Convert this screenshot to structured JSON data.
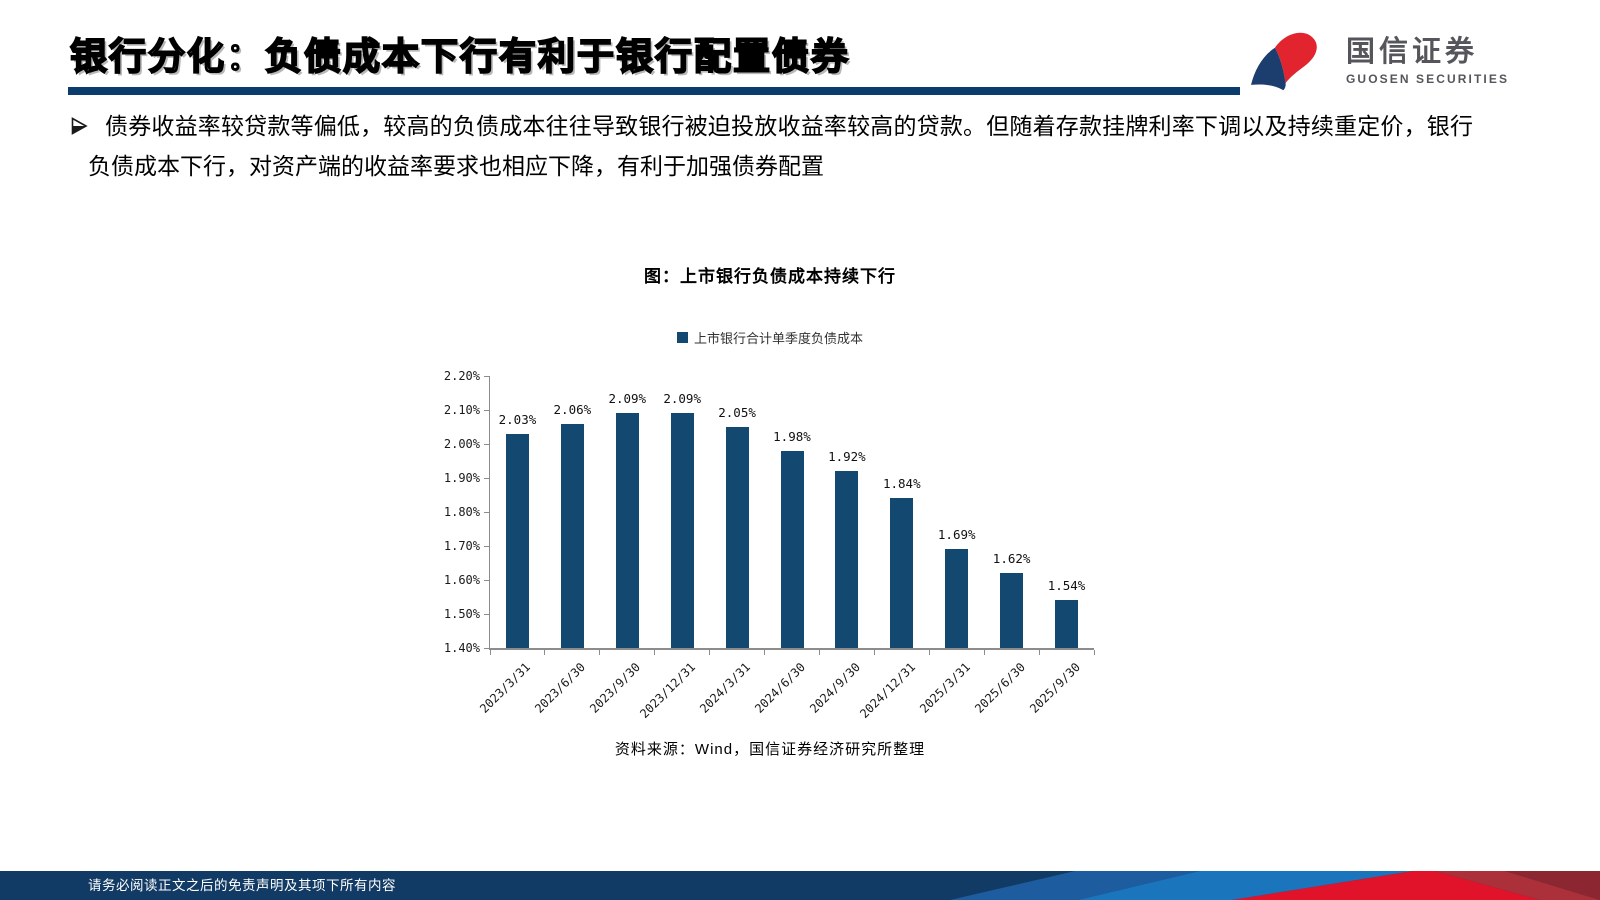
{
  "header": {
    "title": "银行分化：负债成本下行有利于银行配置债券",
    "logo_cn": "国信证券",
    "logo_en": "GUOSEN SECURITIES"
  },
  "body": {
    "bullet": "债券收益率较贷款等偏低，较高的负债成本往往导致银行被迫投放收益率较高的贷款。但随着存款挂牌利率下调以及持续重定价，银行负债成本下行，对资产端的收益率要求也相应下降，有利于加强债券配置"
  },
  "chart_data": {
    "type": "bar",
    "title": "图：上市银行负债成本持续下行",
    "legend_label": "上市银行合计单季度负债成本",
    "legend_position": "top",
    "source": "资料来源：Wind，国信证券经济研究所整理",
    "categories": [
      "2023/3/31",
      "2023/6/30",
      "2023/9/30",
      "2023/12/31",
      "2024/3/31",
      "2024/6/30",
      "2024/9/30",
      "2024/12/31",
      "2025/3/31",
      "2025/6/30",
      "2025/9/30"
    ],
    "values": [
      2.03,
      2.06,
      2.09,
      2.09,
      2.05,
      1.98,
      1.92,
      1.84,
      1.69,
      1.62,
      1.54
    ],
    "data_labels": [
      "2.03%",
      "2.06%",
      "2.09%",
      "2.09%",
      "2.05%",
      "1.98%",
      "1.92%",
      "1.84%",
      "1.69%",
      "1.62%",
      "1.54%"
    ],
    "unit": "%",
    "ylim": [
      1.4,
      2.2
    ],
    "ytick_step": 0.1,
    "ytick_labels": [
      "1.40%",
      "1.50%",
      "1.60%",
      "1.70%",
      "1.80%",
      "1.90%",
      "2.00%",
      "2.10%",
      "2.20%"
    ],
    "grid": false,
    "bar_color": "#134870",
    "axis_color": "#8C8C8C"
  },
  "footer": {
    "disclaimer": "请务必阅读正文之后的免责声明及其项下所有内容"
  },
  "colors": {
    "brand_navy": "#113A64",
    "title_rule_navy": "#0C3B6E",
    "logo_blue": "#1C3E6E",
    "logo_red": "#E1242D",
    "footer_blue_mid": "#1D5C9E",
    "footer_blue": "#1B75BC",
    "footer_red": "#E0132B",
    "footer_brick": "#AB3039",
    "footer_maroon": "#8C2630"
  }
}
